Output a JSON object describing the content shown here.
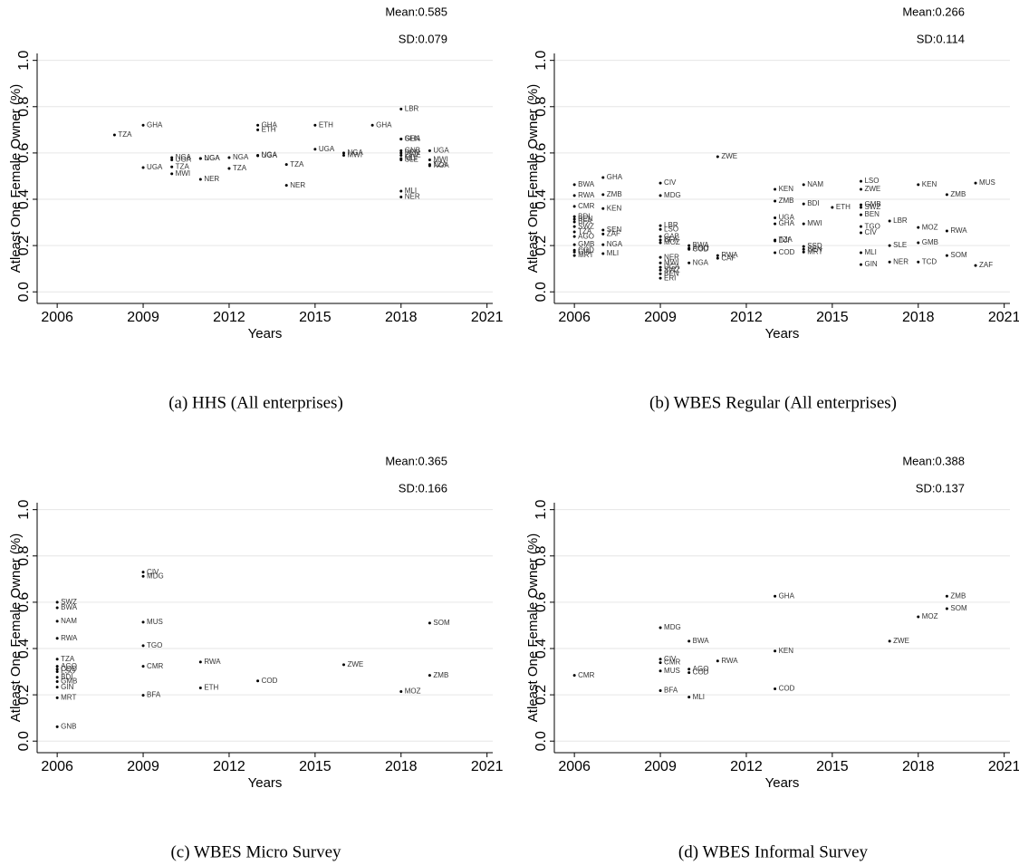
{
  "chart_data": [
    {
      "type": "scatter",
      "caption": "(a) HHS (All enterprises)",
      "annotations": [
        "Mean:0.585",
        "SD:0.079"
      ],
      "xlabel": "Years",
      "ylabel": "Atleast One Female Owner (%)",
      "color": "#000000",
      "grid": true,
      "xlim": [
        2005.3,
        2021.2
      ],
      "ylim": [
        -0.05,
        1.03
      ],
      "xticks": [
        2006,
        2009,
        2012,
        2015,
        2018,
        2021
      ],
      "yticks": [
        {
          "value": 0,
          "label": "0.0"
        },
        0.2,
        0.4,
        0.6,
        0.8,
        {
          "value": 1,
          "label": "1.0"
        }
      ],
      "x": [
        2008,
        2009,
        2009,
        2010,
        2010,
        2010,
        2010,
        2011,
        2011,
        2011,
        2012,
        2012,
        2013,
        2013,
        2013,
        2013,
        2014,
        2014,
        2015,
        2015,
        2016,
        2016,
        2017,
        2018,
        2018,
        2018,
        2018,
        2018,
        2018,
        2018,
        2018,
        2018,
        2018,
        2019,
        2019,
        2019,
        2019
      ],
      "values": [
        0.678,
        0.72,
        0.537,
        0.58,
        0.57,
        0.54,
        0.51,
        0.576,
        0.576,
        0.486,
        0.58,
        0.533,
        0.72,
        0.7,
        0.59,
        0.588,
        0.55,
        0.46,
        0.72,
        0.616,
        0.6,
        0.59,
        0.72,
        0.79,
        0.66,
        0.66,
        0.61,
        0.6,
        0.59,
        0.576,
        0.57,
        0.435,
        0.41,
        0.61,
        0.57,
        0.55,
        0.545
      ],
      "point_labels": [
        "TZA",
        "GHA",
        "UGA",
        "NGA",
        "UGA",
        "TZA",
        "MWI",
        "NGA",
        "UGA",
        "NER",
        "NGA",
        "TZA",
        "GHA",
        "ETH",
        "NGA",
        "UGA",
        "TZA",
        "NER",
        "ETH",
        "UGA",
        "NGA",
        "MWI",
        "GHA",
        "LBR",
        "SEN",
        "GHA",
        "GNB",
        "BEN",
        "ZWE",
        "MLI",
        "SLE",
        "MLI",
        "NER",
        "UGA",
        "MWI",
        "TZA",
        "NGA"
      ]
    },
    {
      "type": "scatter",
      "caption": "(b) WBES Regular (All enterprises)",
      "annotations": [
        "Mean:0.266",
        "SD:0.114"
      ],
      "xlabel": "Years",
      "ylabel": "Atleast One Female Owner (%)",
      "color": "#000000",
      "grid": true,
      "xlim": [
        2005.3,
        2021.2
      ],
      "ylim": [
        -0.05,
        1.03
      ],
      "xticks": [
        2006,
        2009,
        2012,
        2015,
        2018,
        2021
      ],
      "yticks": [
        {
          "value": 0,
          "label": "0.0"
        },
        0.2,
        0.4,
        0.6,
        0.8,
        {
          "value": 1,
          "label": "1.0"
        }
      ],
      "x": [
        2006,
        2006,
        2006,
        2006,
        2006,
        2006,
        2006,
        2006,
        2006,
        2006,
        2006,
        2006,
        2006,
        2007,
        2007,
        2007,
        2007,
        2007,
        2007,
        2007,
        2009,
        2009,
        2009,
        2009,
        2009,
        2009,
        2009,
        2009,
        2009,
        2009,
        2009,
        2009,
        2009,
        2010,
        2010,
        2010,
        2010,
        2011,
        2011,
        2011,
        2013,
        2013,
        2013,
        2013,
        2013,
        2013,
        2013,
        2014,
        2014,
        2014,
        2014,
        2014,
        2014,
        2015,
        2016,
        2016,
        2016,
        2016,
        2016,
        2016,
        2016,
        2016,
        2016,
        2017,
        2017,
        2017,
        2018,
        2018,
        2018,
        2018,
        2019,
        2019,
        2019,
        2020,
        2020
      ],
      "values": [
        0.463,
        0.416,
        0.369,
        0.325,
        0.314,
        0.302,
        0.282,
        0.259,
        0.239,
        0.204,
        0.18,
        0.172,
        0.157,
        0.494,
        0.42,
        0.36,
        0.267,
        0.25,
        0.204,
        0.165,
        0.47,
        0.416,
        0.286,
        0.27,
        0.239,
        0.224,
        0.212,
        0.149,
        0.125,
        0.106,
        0.094,
        0.078,
        0.059,
        0.2,
        0.188,
        0.184,
        0.125,
        0.584,
        0.157,
        0.145,
        0.443,
        0.392,
        0.32,
        0.294,
        0.224,
        0.22,
        0.169,
        0.463,
        0.38,
        0.294,
        0.196,
        0.184,
        0.172,
        0.365,
        0.478,
        0.443,
        0.376,
        0.365,
        0.333,
        0.282,
        0.255,
        0.169,
        0.118,
        0.306,
        0.2,
        0.129,
        0.463,
        0.278,
        0.212,
        0.129,
        0.42,
        0.263,
        0.157,
        0.47,
        0.114
      ],
      "point_labels": [
        "BWA",
        "RWA",
        "CMR",
        "BDI",
        "BEN",
        "BFA",
        "SWZ",
        "TZA",
        "AGO",
        "GMB",
        "COD",
        "GIN",
        "MRT",
        "GHA",
        "ZMB",
        "KEN",
        "SEN",
        "ZAF",
        "NGA",
        "MLI",
        "CIV",
        "MDG",
        "LBR",
        "LSO",
        "GAB",
        "BFA",
        "MOZ",
        "NER",
        "MWI",
        "UGA",
        "SWZ",
        "BEN",
        "ERI",
        "BWA",
        "AGO",
        "COD",
        "NGA",
        "ZWE",
        "RWA",
        "CAF",
        "KEN",
        "ZMB",
        "UGA",
        "GHA",
        "TZA",
        "DJI",
        "COD",
        "NAM",
        "BDI",
        "MWI",
        "SSD",
        "SEN",
        "MRT",
        "ETH",
        "LSO",
        "ZWE",
        "GMB",
        "SWZ",
        "BEN",
        "TGO",
        "CIV",
        "MLI",
        "GIN",
        "LBR",
        "SLE",
        "NER",
        "KEN",
        "MOZ",
        "GMB",
        "TCD",
        "ZMB",
        "RWA",
        "SOM",
        "MUS",
        "ZAF"
      ]
    },
    {
      "type": "scatter",
      "caption": "(c) WBES Micro Survey",
      "annotations": [
        "Mean:0.365",
        "SD:0.166"
      ],
      "xlabel": "Years",
      "ylabel": "Atleast One Female Owner (%)",
      "color": "#000000",
      "grid": true,
      "xlim": [
        2005.3,
        2021.2
      ],
      "ylim": [
        -0.05,
        1.03
      ],
      "xticks": [
        2006,
        2009,
        2012,
        2015,
        2018,
        2021
      ],
      "yticks": [
        {
          "value": 0,
          "label": "0.0"
        },
        0.2,
        0.4,
        0.6,
        0.8,
        {
          "value": 1,
          "label": "1.0"
        }
      ],
      "x": [
        2006,
        2006,
        2006,
        2006,
        2006,
        2006,
        2006,
        2006,
        2006,
        2006,
        2006,
        2006,
        2006,
        2009,
        2009,
        2009,
        2009,
        2009,
        2009,
        2011,
        2011,
        2013,
        2016,
        2018,
        2019,
        2019
      ],
      "values": [
        0.6,
        0.576,
        0.518,
        0.444,
        0.354,
        0.323,
        0.311,
        0.3,
        0.276,
        0.257,
        0.233,
        0.187,
        0.062,
        0.73,
        0.712,
        0.514,
        0.412,
        0.323,
        0.198,
        0.342,
        0.23,
        0.26,
        0.33,
        0.214,
        0.51,
        0.284
      ],
      "point_labels": [
        "SWZ",
        "BWA",
        "NAM",
        "RWA",
        "TZA",
        "AGO",
        "COD",
        "LSO",
        "BDI",
        "GMB",
        "GIN",
        "MRT",
        "GNB",
        "CIV",
        "MDG",
        "MUS",
        "TGO",
        "CMR",
        "BFA",
        "RWA",
        "ETH",
        "COD",
        "ZWE",
        "MOZ",
        "SOM",
        "ZMB"
      ]
    },
    {
      "type": "scatter",
      "caption": "(d) WBES Informal Survey",
      "annotations": [
        "Mean:0.388",
        "SD:0.137"
      ],
      "xlabel": "Years",
      "ylabel": "Atleast One Female Owner (%)",
      "color": "#000000",
      "grid": true,
      "xlim": [
        2005.3,
        2021.2
      ],
      "ylim": [
        -0.05,
        1.03
      ],
      "xticks": [
        2006,
        2009,
        2012,
        2015,
        2018,
        2021
      ],
      "yticks": [
        {
          "value": 0,
          "label": "0.0"
        },
        0.2,
        0.4,
        0.6,
        0.8,
        {
          "value": 1,
          "label": "1.0"
        }
      ],
      "x": [
        2006,
        2009,
        2009,
        2009,
        2009,
        2009,
        2010,
        2010,
        2010,
        2010,
        2011,
        2013,
        2013,
        2013,
        2017,
        2018,
        2019,
        2019
      ],
      "values": [
        0.284,
        0.49,
        0.354,
        0.339,
        0.303,
        0.218,
        0.432,
        0.311,
        0.296,
        0.19,
        0.346,
        0.626,
        0.389,
        0.226,
        0.432,
        0.537,
        0.626,
        0.572
      ],
      "point_labels": [
        "CMR",
        "MDG",
        "CIV",
        "CMR",
        "MUS",
        "BFA",
        "BWA",
        "AGO",
        "COD",
        "MLI",
        "RWA",
        "GHA",
        "KEN",
        "COD",
        "ZWE",
        "MOZ",
        "ZMB",
        "SOM"
      ]
    }
  ]
}
